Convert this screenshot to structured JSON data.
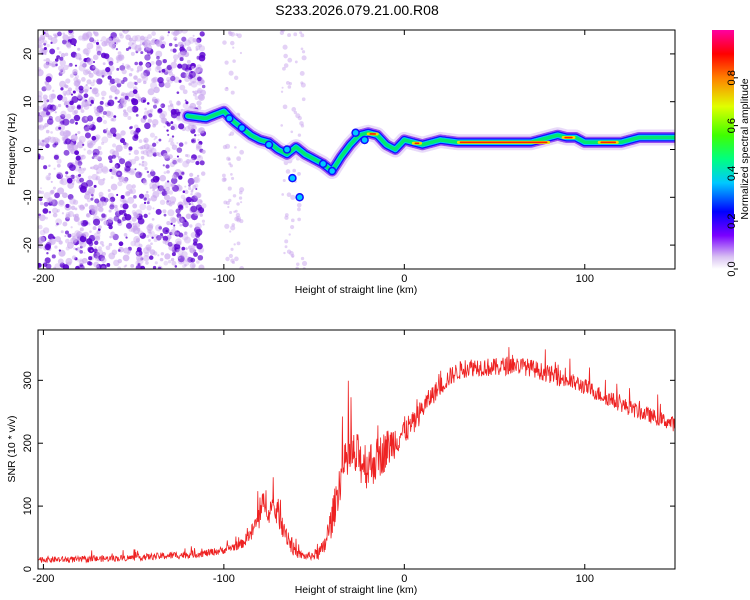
{
  "title": "S233.2026.079.21.00.R08",
  "colors": {
    "snr_line": "#ee2222",
    "scatter_dense": "#5a00d0",
    "scatter_light": "#c9a6ee",
    "background": "#ffffff"
  },
  "chart_data": [
    {
      "id": "spectrogram",
      "type": "heatmap",
      "xlabel": "Height of straight line (km)",
      "ylabel": "Frequency (Hz)",
      "xlim": [
        -203,
        150
      ],
      "ylim": [
        -25,
        25
      ],
      "xticks": [
        -200,
        -100,
        0,
        100
      ],
      "xtick_labels": [
        "-200",
        "-100",
        "0",
        "100"
      ],
      "yticks": [
        -20,
        -10,
        0,
        10,
        20
      ],
      "ytick_labels": [
        "-20",
        "-10",
        "0",
        "10",
        "20"
      ],
      "ridge": {
        "x": [
          -120,
          -110,
          -100,
          -95,
          -90,
          -85,
          -80,
          -75,
          -70,
          -65,
          -60,
          -55,
          -50,
          -45,
          -40,
          -35,
          -30,
          -25,
          -20,
          -15,
          -10,
          -5,
          0,
          10,
          20,
          30,
          40,
          50,
          60,
          70,
          80,
          85,
          90,
          95,
          100,
          110,
          120,
          130,
          150
        ],
        "y": [
          7,
          6.5,
          8,
          6,
          4.5,
          3,
          2,
          1.5,
          0,
          -1,
          0.5,
          -1,
          -2,
          -3,
          -4.5,
          -1.5,
          1,
          3,
          3.5,
          3,
          1,
          0,
          2,
          1,
          2,
          1.5,
          1.5,
          1.5,
          1.5,
          1.5,
          2.5,
          3,
          2.5,
          2.5,
          1.5,
          1.5,
          1.5,
          2.5,
          2.5
        ]
      },
      "colorbar": {
        "label": "Normalized spectral amplitude",
        "range": [
          0.0,
          1.0
        ],
        "ticks": [
          0.0,
          0.2,
          0.4,
          0.6,
          0.8
        ],
        "tick_labels": [
          "0.0",
          "0.2",
          "0.4",
          "0.6",
          "0.8"
        ]
      }
    },
    {
      "id": "snr",
      "type": "line",
      "xlabel": "Height of straight line (km)",
      "ylabel": "SNR (10 * v/v)",
      "xlim": [
        -203,
        150
      ],
      "ylim": [
        0,
        380
      ],
      "xticks": [
        -200,
        -100,
        0,
        100
      ],
      "xtick_labels": [
        "-200",
        "-100",
        "0",
        "100"
      ],
      "yticks": [
        0,
        100,
        200,
        300
      ],
      "ytick_labels": [
        "0",
        "100",
        "200",
        "300"
      ],
      "series": [
        {
          "name": "SNR",
          "x": [
            -203,
            -180,
            -150,
            -125,
            -110,
            -100,
            -95,
            -90,
            -85,
            -80,
            -77,
            -75,
            -70,
            -67,
            -63,
            -60,
            -55,
            -50,
            -45,
            -40,
            -35,
            -30,
            -25,
            -20,
            -15,
            -10,
            -5,
            0,
            5,
            10,
            15,
            20,
            25,
            30,
            35,
            40,
            50,
            60,
            70,
            80,
            90,
            100,
            110,
            120,
            130,
            140,
            150
          ],
          "y": [
            15,
            15,
            18,
            22,
            25,
            30,
            35,
            40,
            55,
            85,
            110,
            95,
            90,
            70,
            40,
            25,
            20,
            22,
            30,
            80,
            150,
            180,
            175,
            165,
            175,
            190,
            205,
            220,
            230,
            255,
            275,
            290,
            305,
            315,
            320,
            322,
            320,
            325,
            320,
            310,
            300,
            290,
            275,
            262,
            250,
            240,
            230
          ],
          "amp": [
            10,
            10,
            10,
            12,
            12,
            12,
            14,
            15,
            25,
            45,
            50,
            45,
            45,
            45,
            30,
            15,
            12,
            15,
            30,
            55,
            70,
            80,
            80,
            80,
            70,
            65,
            55,
            45,
            40,
            35,
            32,
            30,
            30,
            30,
            30,
            30,
            30,
            30,
            28,
            28,
            28,
            26,
            25,
            25,
            25,
            24,
            24
          ]
        }
      ]
    }
  ]
}
